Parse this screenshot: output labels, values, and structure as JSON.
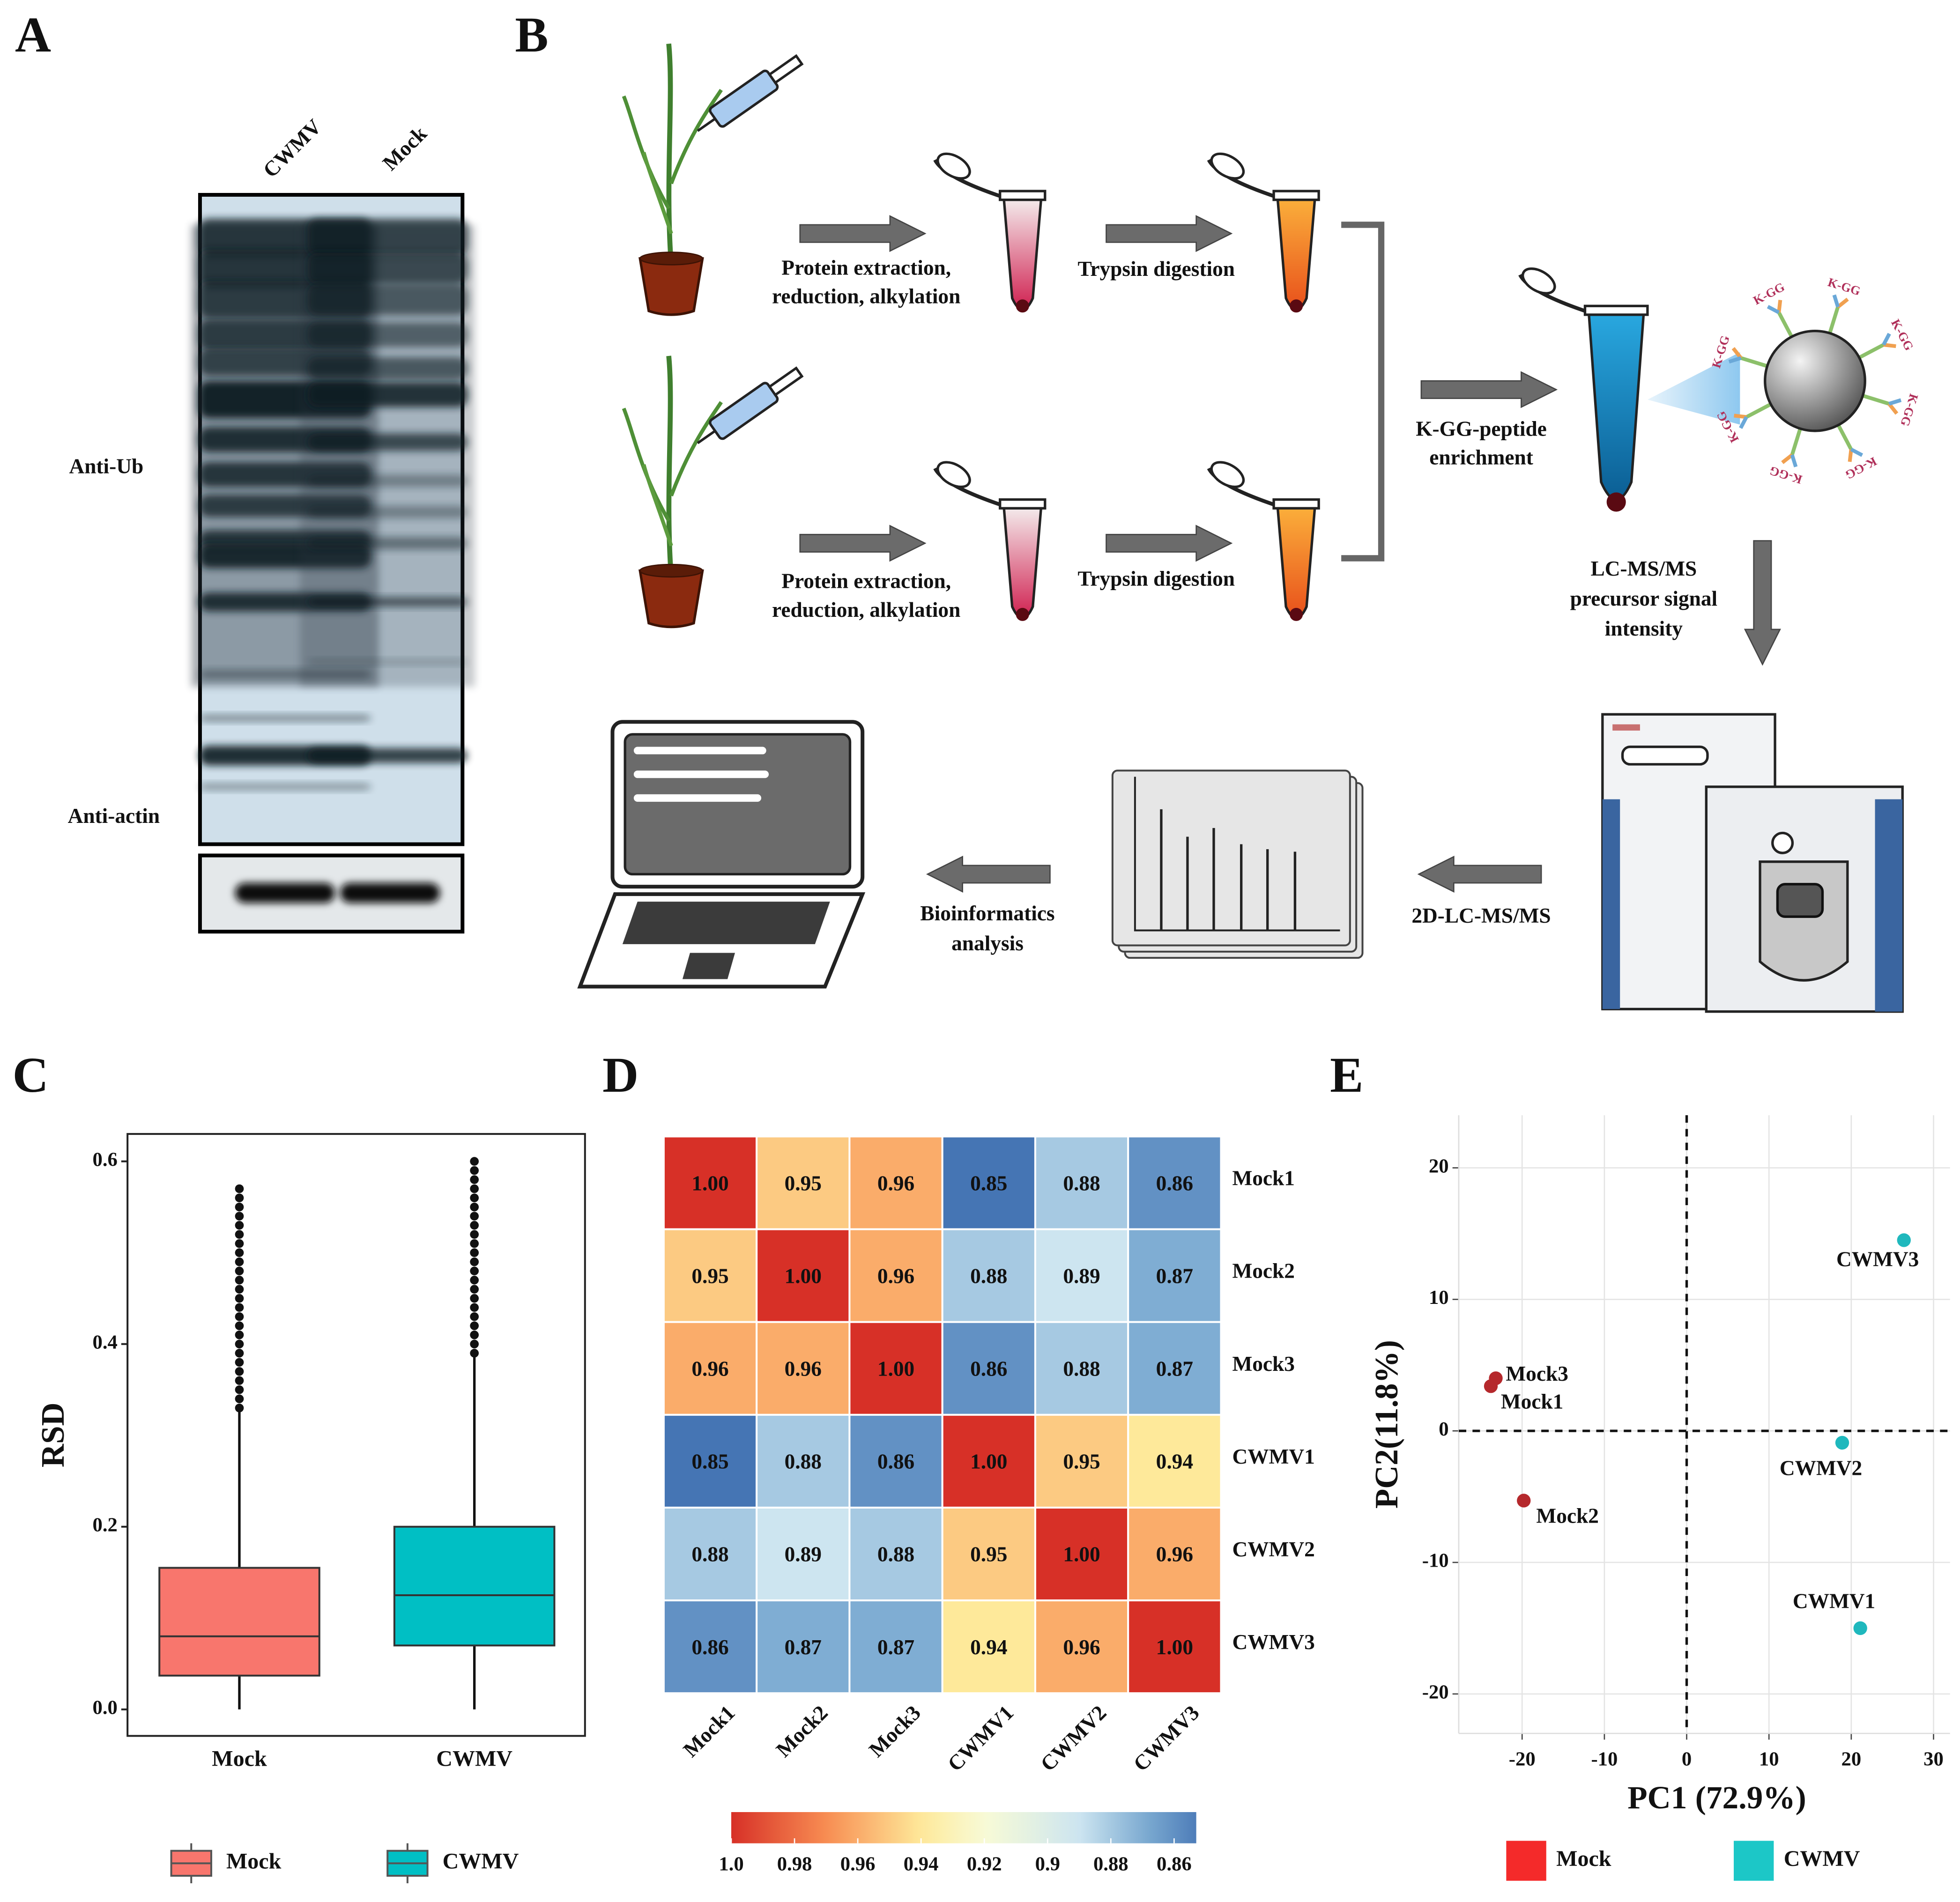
{
  "panel_a": {
    "label": "A",
    "lanes": [
      "CWMV",
      "Mock"
    ],
    "blot_labels": [
      "Anti-Ub",
      "Anti-actin"
    ]
  },
  "panel_b": {
    "label": "B",
    "extraction": [
      "Protein extraction,",
      "reduction, alkylation"
    ],
    "trypsin": "Trypsin digestion",
    "enrichment": [
      "K-GG-peptide",
      "enrichment"
    ],
    "lcms": [
      "LC-MS/MS",
      "precursor signal",
      "intensity"
    ],
    "lc2d": "2D-LC-MS/MS",
    "bioinfo": [
      "Bioinformatics",
      "analysis"
    ],
    "bead_label": "K-GG"
  },
  "chart_data": [
    {
      "type": "box",
      "label": "C",
      "y_label": "RSD",
      "categories": [
        "Mock",
        "CWMV"
      ],
      "ylim": [
        -0.029,
        0.63
      ],
      "yticks": [
        {
          "value": 0,
          "label": "0.0"
        },
        0.2,
        0.4,
        0.6
      ],
      "series": [
        {
          "name": "Mock",
          "color": "#f8766d",
          "stats": {
            "min": 0,
            "q1": 0.037,
            "median": 0.08,
            "q3": 0.155,
            "max": 0.33
          },
          "outliers": [
            0.33,
            0.34,
            0.35,
            0.36,
            0.37,
            0.38,
            0.39,
            0.4,
            0.41,
            0.42,
            0.43,
            0.44,
            0.45,
            0.46,
            0.47,
            0.48,
            0.49,
            0.5,
            0.51,
            0.52,
            0.53,
            0.54,
            0.55,
            0.56,
            0.57
          ]
        },
        {
          "name": "CWMV",
          "color": "#00bfc4",
          "stats": {
            "min": 0,
            "q1": 0.07,
            "median": 0.125,
            "q3": 0.2,
            "max": 0.39
          },
          "outliers": [
            0.39,
            0.4,
            0.41,
            0.42,
            0.43,
            0.44,
            0.45,
            0.46,
            0.47,
            0.48,
            0.49,
            0.5,
            0.51,
            0.52,
            0.53,
            0.54,
            0.55,
            0.56,
            0.57,
            0.58,
            0.59,
            0.6
          ]
        }
      ]
    },
    {
      "type": "heatmap",
      "label": "D",
      "rows": [
        "Mock1",
        "Mock2",
        "Mock3",
        "CWMV1",
        "CWMV2",
        "CWMV3"
      ],
      "columns": [
        "Mock1",
        "Mock2",
        "Mock3",
        "CWMV1",
        "CWMV2",
        "CWMV3"
      ],
      "values": [
        [
          1,
          0.95,
          0.96,
          0.85,
          0.88,
          0.86
        ],
        [
          0.95,
          1,
          0.96,
          0.88,
          0.89,
          0.87
        ],
        [
          0.96,
          0.96,
          1,
          0.86,
          0.88,
          0.87
        ],
        [
          0.85,
          0.88,
          0.86,
          1,
          0.95,
          0.94
        ],
        [
          0.88,
          0.89,
          0.88,
          0.95,
          1,
          0.96
        ],
        [
          0.86,
          0.87,
          0.87,
          0.94,
          0.96,
          1
        ]
      ],
      "value_labels": [
        [
          "1.00",
          "0.95",
          "0.96",
          "0.85",
          "0.88",
          "0.86"
        ],
        [
          "0.95",
          "1.00",
          "0.96",
          "0.88",
          "0.89",
          "0.87"
        ],
        [
          "0.96",
          "0.96",
          "1.00",
          "0.86",
          "0.88",
          "0.87"
        ],
        [
          "0.85",
          "0.88",
          "0.86",
          "1.00",
          "0.95",
          "0.94"
        ],
        [
          "0.88",
          "0.89",
          "0.88",
          "0.95",
          "1.00",
          "0.96"
        ],
        [
          "0.86",
          "0.87",
          "0.87",
          "0.94",
          "0.96",
          "1.00"
        ]
      ],
      "clim": [
        1,
        0.853
      ],
      "cticks": [
        {
          "value": 1,
          "label": "1.0"
        },
        0.98,
        0.96,
        0.94,
        0.92,
        0.9,
        0.88,
        0.86
      ],
      "colorscale": [
        [
          1,
          "#d73027"
        ],
        [
          0.97,
          "#f88d52"
        ],
        [
          0.94,
          "#fee99a"
        ],
        [
          0.92,
          "#f8fbd6"
        ],
        [
          0.89,
          "#cde5f0"
        ],
        [
          0.87,
          "#7fadd3"
        ],
        [
          0.85,
          "#4575b4"
        ]
      ]
    },
    {
      "type": "scatter",
      "label": "E",
      "x_label": "PC1 (72.9%)",
      "y_label": "PC2(11.8%)",
      "xlim": [
        -27.7,
        32
      ],
      "ylim": [
        -23,
        24
      ],
      "xticks": [
        -20,
        -10,
        0,
        10,
        20,
        30
      ],
      "yticks": [
        -20,
        -10,
        0,
        10,
        20
      ],
      "grid": true,
      "zero_lines": true,
      "series": [
        {
          "name": "Mock",
          "color": "#b5282c",
          "legend_color": "#f42a2a",
          "labels": [
            "Mock3",
            "Mock1",
            "Mock2"
          ],
          "x": [
            -23.2,
            -23.8,
            -19.8
          ],
          "values": [
            4.0,
            3.4,
            -5.3
          ]
        },
        {
          "name": "CWMV",
          "color": "#1fb8bd",
          "legend_color": "#1cc7c7",
          "labels": [
            "CWMV3",
            "CWMV2",
            "CWMV1"
          ],
          "x": [
            26.4,
            18.9,
            21.1
          ],
          "values": [
            14.5,
            -0.9,
            -15.0
          ]
        }
      ]
    }
  ]
}
